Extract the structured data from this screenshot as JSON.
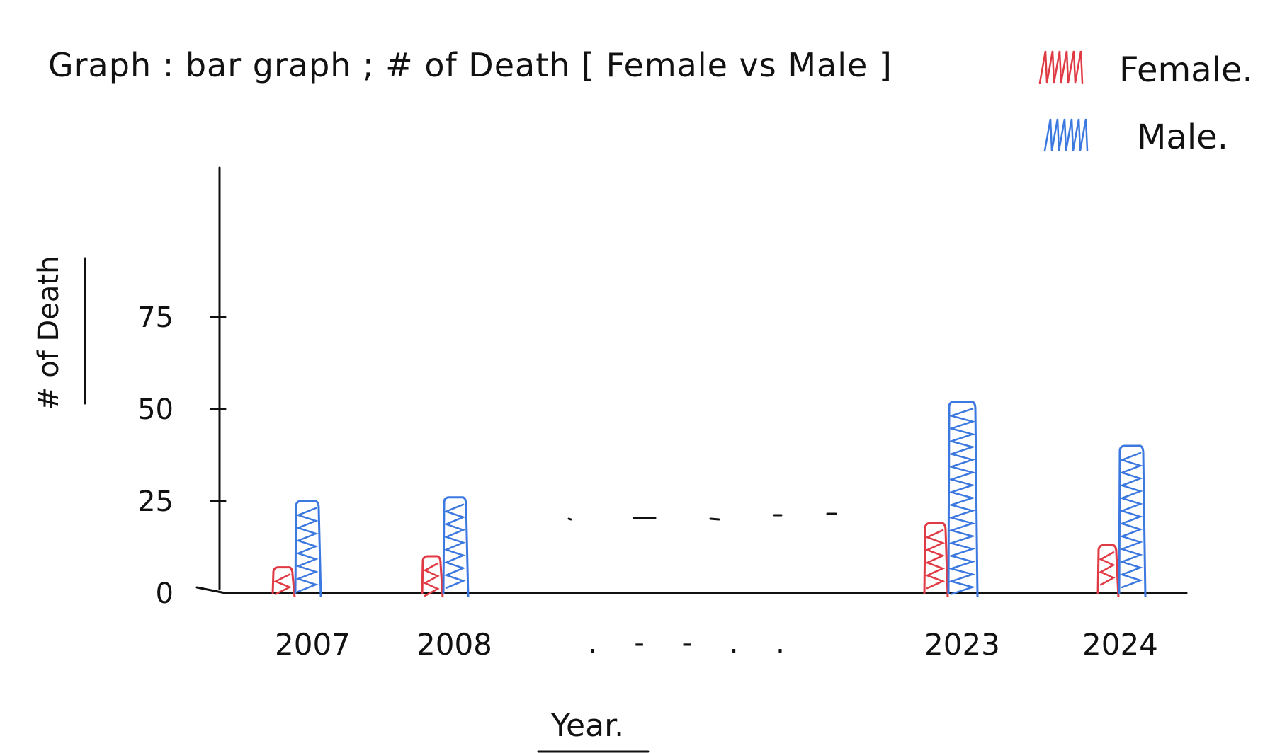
{
  "colors": {
    "female": "#e03a44",
    "male": "#3b78e0",
    "ink": "#111111"
  },
  "chart_data": {
    "type": "bar",
    "title": "Graph : bar graph ; # of Death [ Female vs Male ]",
    "ylabel": "# of Death",
    "xlabel": "Year.",
    "categories": [
      "2007",
      "2008",
      "2023",
      "2024"
    ],
    "gap_label": ". - - . .",
    "yticks": [
      "0",
      "25",
      "50",
      "75"
    ],
    "ylim": [
      0,
      100
    ],
    "grid": false,
    "legend_position": "top-right",
    "series": [
      {
        "name": "Female.",
        "color": "#e03a44",
        "values": [
          7,
          10,
          19,
          13
        ]
      },
      {
        "name": "Male.",
        "color": "#3b78e0",
        "values": [
          25,
          26,
          52,
          40
        ]
      }
    ]
  }
}
